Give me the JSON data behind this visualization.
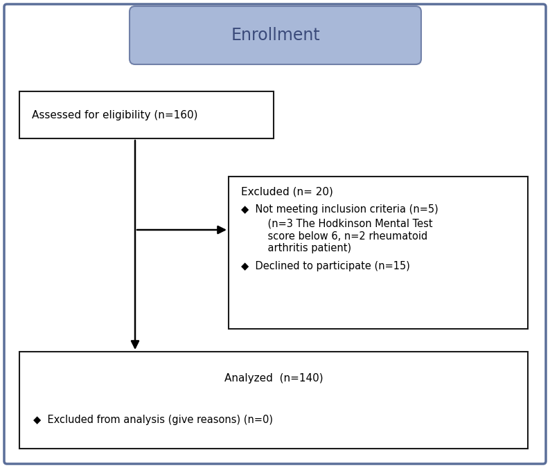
{
  "title": "Enrollment",
  "title_box_color": "#a8b8d8",
  "title_box_edge": "#7080a8",
  "title_text_color": "#3a4a7a",
  "box1_text": "Assessed for eligibility (n=160)",
  "box2_title": "Excluded (n= 20)",
  "box2_bullet1": "◆  Not meeting inclusion criteria (n=5)",
  "box2_sub1": "    (n=3 The Hodkinson Mental Test",
  "box2_sub2": "    score below 6, n=2 rheumatoid",
  "box2_sub3": "    arthritis patient)",
  "box2_bullet2": "◆  Declined to participate (n=15)",
  "box3_title": "Analyzed  (n=140)",
  "box3_bullet": "◆  Excluded from analysis (give reasons) (n=0)",
  "background_color": "#ffffff",
  "outer_border_color": "#5b6e99",
  "box_border_color": "#1a1a1a",
  "font_size_title": 17,
  "font_size_box": 11,
  "font_size_small": 10.5
}
